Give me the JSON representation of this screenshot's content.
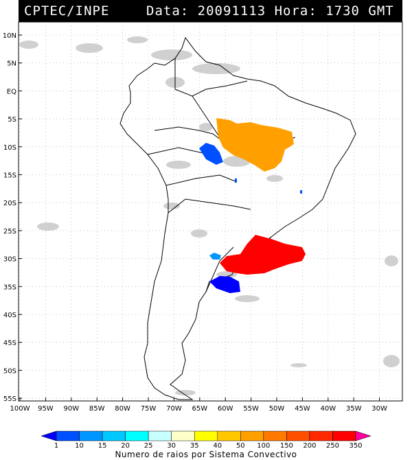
{
  "header": {
    "source": "CPTEC/INPE",
    "datetime": "Data: 20091113 Hora: 1730 GMT",
    "colors": {
      "background": "#000000",
      "text": "#ffffff"
    }
  },
  "map": {
    "region": "South America",
    "lat_labels": [
      "10N",
      "5N",
      "EQ",
      "5S",
      "10S",
      "15S",
      "20S",
      "25S",
      "30S",
      "35S",
      "40S",
      "45S",
      "50S",
      "55S"
    ],
    "lon_labels": [
      "100W",
      "95W",
      "90W",
      "85W",
      "80W",
      "75W",
      "70W",
      "65W",
      "60W",
      "55W",
      "50W",
      "45W",
      "40W",
      "35W",
      "30W"
    ],
    "grid": "dotted",
    "cloud_color": "#c8c8c8",
    "coastline_color": "#000000"
  },
  "colorbar": {
    "ticks": [
      "1",
      "10",
      "15",
      "20",
      "25",
      "30",
      "35",
      "40",
      "50",
      "100",
      "150",
      "200",
      "250",
      "350"
    ],
    "colors": [
      "#0000ff",
      "#0050ff",
      "#0096ff",
      "#00c8ff",
      "#00ffff",
      "#c8ffff",
      "#ffffc8",
      "#ffff00",
      "#ffc800",
      "#ffa000",
      "#ff7800",
      "#ff5000",
      "#ff2800",
      "#ff0000",
      "#ff00a0"
    ],
    "label": "Numero de raios por Sistema Convectivo"
  },
  "systems": [
    {
      "region": "central-brazil",
      "color": "#ffa000"
    },
    {
      "region": "bolivia",
      "color": "#0050ff"
    },
    {
      "region": "southern-brazil",
      "color": "#ff0000"
    },
    {
      "region": "uruguay",
      "color": "#0000ff"
    },
    {
      "region": "paraguay",
      "color": "#0096ff"
    }
  ]
}
